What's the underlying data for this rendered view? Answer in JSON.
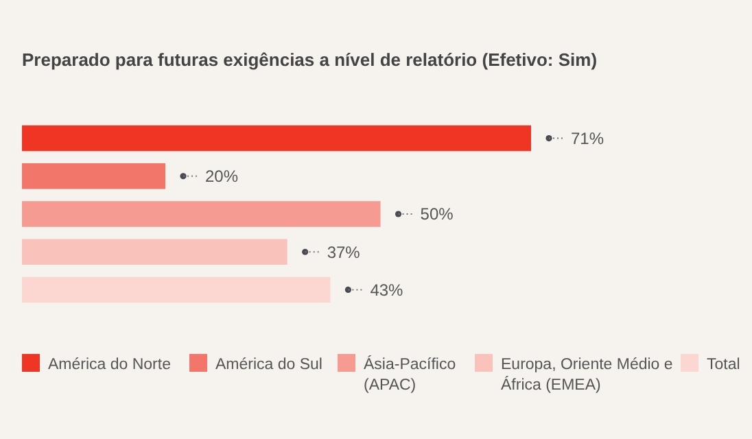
{
  "chart_data": {
    "type": "bar",
    "orientation": "horizontal",
    "stacked": true,
    "title": "Preparado para futuras exigências a nível de relatório (Efetivo: Sim)",
    "categories": [
      null,
      null,
      null,
      null,
      null
    ],
    "legend": "bottom",
    "series": [
      {
        "name": "América do Norte",
        "color": "#ef3524",
        "values": [
          71,
          null,
          null,
          null,
          null
        ],
        "value_labels": [
          "71%",
          null,
          null,
          null,
          null
        ]
      },
      {
        "name": "América do Sul",
        "color": "#f2766a",
        "values": [
          null,
          20,
          null,
          null,
          null
        ],
        "value_labels": [
          null,
          "20%",
          null,
          null,
          null
        ]
      },
      {
        "name": "Ásia-Pacífico (APAC)",
        "color": "#f69b92",
        "values": [
          null,
          null,
          50,
          null,
          null
        ],
        "value_labels": [
          null,
          null,
          "50%",
          null,
          null
        ]
      },
      {
        "name": "Europa, Oriente Médio e África (EMEA)",
        "color": "#f9c2bb",
        "values": [
          null,
          null,
          null,
          37,
          null
        ],
        "value_labels": [
          null,
          null,
          null,
          "37%",
          null
        ]
      },
      {
        "name": "Total",
        "color": "#fcd7d2",
        "values": [
          null,
          null,
          null,
          null,
          43
        ],
        "value_labels": [
          null,
          null,
          null,
          null,
          "43%"
        ]
      }
    ]
  }
}
